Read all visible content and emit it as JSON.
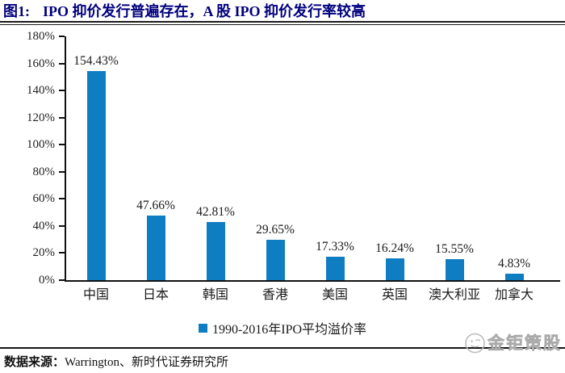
{
  "figure": {
    "label": "图1:",
    "title": "IPO 抑价发行普遍存在，A 股 IPO 抑价发行率较高"
  },
  "chart_data": {
    "type": "bar",
    "categories": [
      "中国",
      "日本",
      "韩国",
      "香港",
      "美国",
      "英国",
      "澳大利亚",
      "加拿大"
    ],
    "values": [
      154.43,
      47.66,
      42.81,
      29.65,
      17.33,
      16.24,
      15.55,
      4.83
    ],
    "value_labels": [
      "154.43%",
      "47.66%",
      "42.81%",
      "29.65%",
      "17.33%",
      "16.24%",
      "15.55%",
      "4.83%"
    ],
    "legend": "1990-2016年IPO平均溢价率",
    "legend_position": "bottom-center",
    "ylim": [
      0,
      180
    ],
    "ytick_step": 20,
    "ytick_labels": [
      "0%",
      "20%",
      "40%",
      "60%",
      "80%",
      "100%",
      "120%",
      "140%",
      "160%",
      "180%"
    ],
    "xlabel": "",
    "ylabel": "",
    "grid": false,
    "bar_color": "#0f7dc2"
  },
  "footer": {
    "source_label": "数据来源：",
    "source_text": "Warrington、新时代证券研究所"
  },
  "watermark": {
    "text": "金钜策股",
    "icon": "coin-face-icon"
  },
  "colors": {
    "title": "#00007e",
    "bar": "#0f7dc2",
    "axis": "#111111",
    "text": "#1a1a1a",
    "watermark": "#c4c4c4"
  }
}
